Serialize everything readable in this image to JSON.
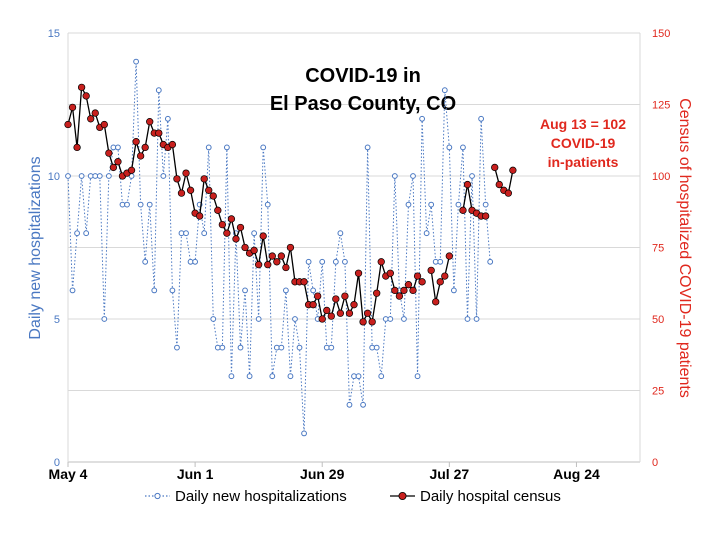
{
  "chart_data": {
    "type": "line",
    "title_lines": [
      "COVID-19 in",
      "El Paso County, CO"
    ],
    "annotation_lines": [
      "Aug 13 = 102",
      "COVID-19",
      "in-patients"
    ],
    "ylabel_left": "Daily new hospitalizations",
    "ylabel_right": "Census of hospitalized COVID-19  patients",
    "x_ticks": [
      "May 4",
      "Jun 1",
      "Jun 29",
      "Jul 27",
      "Aug 24"
    ],
    "x_tick_days": [
      0,
      28,
      56,
      84,
      112
    ],
    "xlim_days": [
      0,
      126
    ],
    "ylim_left": [
      0,
      15
    ],
    "yticks_left": [
      "0",
      "5",
      "10",
      "15"
    ],
    "ylim_right": [
      0,
      150
    ],
    "yticks_right": [
      "0",
      "25",
      "50",
      "75",
      "100",
      "125",
      "150"
    ],
    "grid": "horizontal",
    "legend_position": "bottom",
    "colors": {
      "new": "#4a78c2",
      "census_fill": "#c8201e",
      "census_line": "#000000",
      "right_axis": "#e0281e"
    },
    "series": [
      {
        "name": "Daily new hospitalizations",
        "style": "dotted-open-circles",
        "axis": "left",
        "x": [
          0,
          1,
          2,
          3,
          4,
          5,
          6,
          7,
          8,
          9,
          10,
          11,
          12,
          13,
          14,
          15,
          16,
          17,
          18,
          19,
          20,
          21,
          22,
          23,
          24,
          25,
          26,
          27,
          28,
          29,
          30,
          31,
          32,
          33,
          34,
          35,
          36,
          37,
          38,
          39,
          40,
          41,
          42,
          43,
          44,
          45,
          46,
          47,
          48,
          49,
          50,
          51,
          52,
          53,
          54,
          55,
          56,
          57,
          58,
          59,
          60,
          61,
          62,
          63,
          64,
          65,
          66,
          67,
          68,
          69,
          70,
          71,
          72,
          73,
          74,
          75,
          76,
          77,
          78,
          79,
          80,
          81,
          82,
          83,
          84,
          85,
          86,
          87,
          88,
          89,
          90,
          91,
          92,
          93,
          94,
          95,
          96,
          97,
          98
        ],
        "y": [
          10,
          6,
          8,
          10,
          8,
          10,
          10,
          10,
          5,
          10,
          11,
          11,
          9,
          9,
          10,
          14,
          9,
          7,
          9,
          6,
          13,
          10,
          12,
          6,
          4,
          8,
          8,
          7,
          7,
          9,
          8,
          11,
          5,
          4,
          4,
          11,
          3,
          8,
          4,
          6,
          3,
          8,
          5,
          11,
          9,
          3,
          4,
          4,
          6,
          3,
          5,
          4,
          1,
          7,
          6,
          5,
          7,
          4,
          4,
          7,
          8,
          7,
          2,
          3,
          3,
          2,
          11,
          4,
          4,
          3,
          5,
          5,
          10,
          6,
          5,
          9,
          10,
          3,
          12,
          8,
          9,
          7,
          7,
          13,
          11,
          6,
          9,
          11,
          5,
          10,
          5,
          12,
          9,
          7,
          null,
          null,
          null,
          null,
          null
        ]
      },
      {
        "name": "Daily hospital census",
        "style": "solid-line-filled-circles",
        "axis": "right",
        "x": [
          0,
          1,
          2,
          3,
          4,
          5,
          6,
          7,
          8,
          9,
          10,
          11,
          12,
          13,
          14,
          15,
          16,
          17,
          18,
          19,
          20,
          21,
          22,
          23,
          24,
          25,
          26,
          27,
          28,
          29,
          30,
          31,
          32,
          33,
          34,
          35,
          36,
          37,
          38,
          39,
          40,
          41,
          42,
          43,
          44,
          45,
          46,
          47,
          48,
          49,
          50,
          51,
          52,
          53,
          54,
          55,
          56,
          57,
          58,
          59,
          60,
          61,
          62,
          63,
          64,
          65,
          66,
          67,
          68,
          69,
          70,
          71,
          72,
          73,
          74,
          75,
          76,
          77,
          78,
          79,
          80,
          81,
          82,
          83,
          84,
          85,
          86,
          87,
          88,
          89,
          90,
          91,
          92,
          93,
          94,
          95,
          96,
          97,
          98
        ],
        "y": [
          118,
          124,
          110,
          131,
          128,
          120,
          122,
          117,
          118,
          108,
          103,
          105,
          100,
          101,
          102,
          112,
          107,
          110,
          119,
          115,
          115,
          111,
          110,
          111,
          99,
          94,
          101,
          95,
          87,
          86,
          99,
          95,
          93,
          88,
          83,
          80,
          85,
          78,
          82,
          75,
          73,
          74,
          69,
          79,
          69,
          72,
          70,
          72,
          68,
          75,
          63,
          63,
          63,
          55,
          55,
          58,
          50,
          53,
          51,
          57,
          52,
          58,
          52,
          55,
          66,
          49,
          52,
          49,
          59,
          70,
          65,
          66,
          60,
          58,
          60,
          62,
          60,
          65,
          63,
          null,
          67,
          56,
          63,
          65,
          72,
          null,
          null,
          88,
          97,
          88,
          87,
          86,
          86,
          null,
          103,
          97,
          95,
          94,
          102
        ]
      }
    ]
  },
  "legend": [
    {
      "label": "Daily new hospitalizations"
    },
    {
      "label": "Daily hospital census"
    }
  ]
}
